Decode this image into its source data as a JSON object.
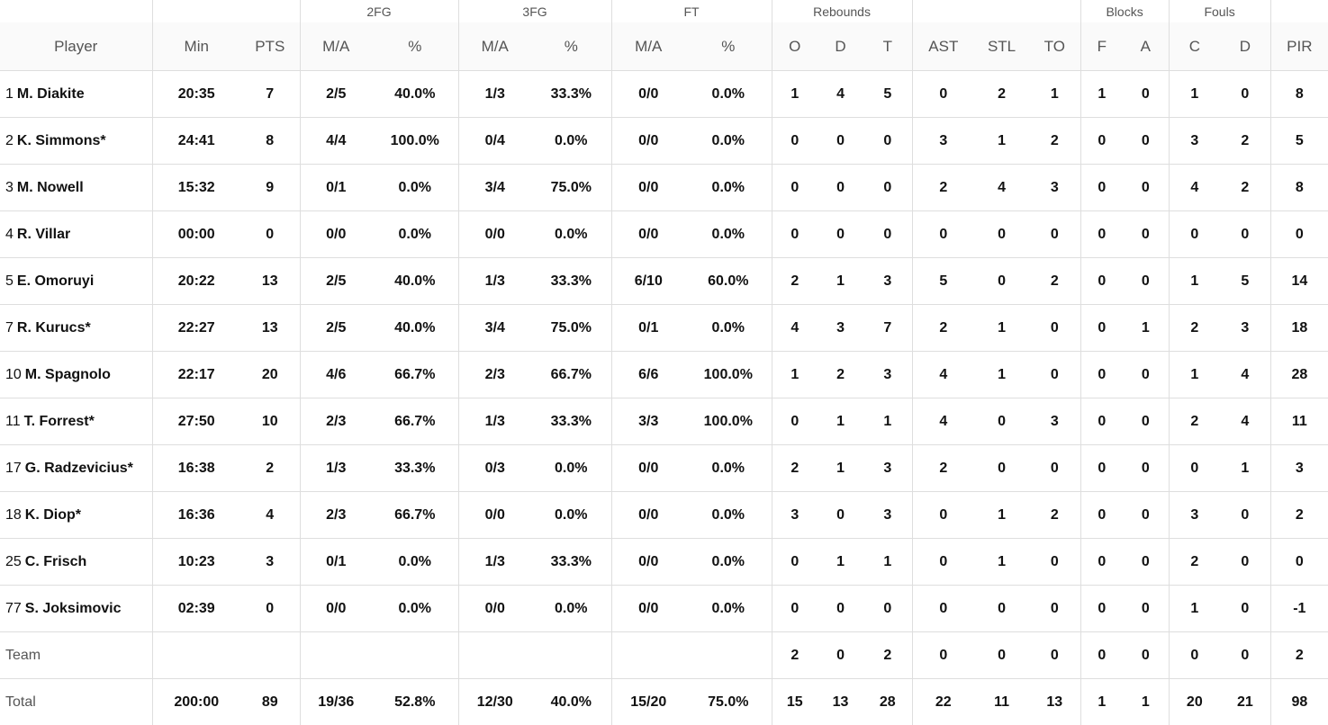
{
  "groups": {
    "fg2": "2FG",
    "fg3": "3FG",
    "ft": "FT",
    "rebounds": "Rebounds",
    "blocks": "Blocks",
    "fouls": "Fouls"
  },
  "headers": {
    "player": "Player",
    "min": "Min",
    "pts": "PTS",
    "fg2_ma": "M/A",
    "fg2_pct": "%",
    "fg3_ma": "M/A",
    "fg3_pct": "%",
    "ft_ma": "M/A",
    "ft_pct": "%",
    "reb_o": "O",
    "reb_d": "D",
    "reb_t": "T",
    "ast": "AST",
    "stl": "STL",
    "to": "TO",
    "blk_f": "F",
    "blk_a": "A",
    "foul_c": "C",
    "foul_d": "D",
    "pir": "PIR"
  },
  "players": [
    {
      "num": "1",
      "name": "M. Diakite",
      "min": "20:35",
      "pts": "7",
      "fg2_ma": "2/5",
      "fg2_pct": "40.0%",
      "fg3_ma": "1/3",
      "fg3_pct": "33.3%",
      "ft_ma": "0/0",
      "ft_pct": "0.0%",
      "reb_o": "1",
      "reb_d": "4",
      "reb_t": "5",
      "ast": "0",
      "stl": "2",
      "to": "1",
      "blk_f": "1",
      "blk_a": "0",
      "foul_c": "1",
      "foul_d": "0",
      "pir": "8"
    },
    {
      "num": "2",
      "name": "K. Simmons*",
      "min": "24:41",
      "pts": "8",
      "fg2_ma": "4/4",
      "fg2_pct": "100.0%",
      "fg3_ma": "0/4",
      "fg3_pct": "0.0%",
      "ft_ma": "0/0",
      "ft_pct": "0.0%",
      "reb_o": "0",
      "reb_d": "0",
      "reb_t": "0",
      "ast": "3",
      "stl": "1",
      "to": "2",
      "blk_f": "0",
      "blk_a": "0",
      "foul_c": "3",
      "foul_d": "2",
      "pir": "5"
    },
    {
      "num": "3",
      "name": "M. Nowell",
      "min": "15:32",
      "pts": "9",
      "fg2_ma": "0/1",
      "fg2_pct": "0.0%",
      "fg3_ma": "3/4",
      "fg3_pct": "75.0%",
      "ft_ma": "0/0",
      "ft_pct": "0.0%",
      "reb_o": "0",
      "reb_d": "0",
      "reb_t": "0",
      "ast": "2",
      "stl": "4",
      "to": "3",
      "blk_f": "0",
      "blk_a": "0",
      "foul_c": "4",
      "foul_d": "2",
      "pir": "8"
    },
    {
      "num": "4",
      "name": "R. Villar",
      "min": "00:00",
      "pts": "0",
      "fg2_ma": "0/0",
      "fg2_pct": "0.0%",
      "fg3_ma": "0/0",
      "fg3_pct": "0.0%",
      "ft_ma": "0/0",
      "ft_pct": "0.0%",
      "reb_o": "0",
      "reb_d": "0",
      "reb_t": "0",
      "ast": "0",
      "stl": "0",
      "to": "0",
      "blk_f": "0",
      "blk_a": "0",
      "foul_c": "0",
      "foul_d": "0",
      "pir": "0"
    },
    {
      "num": "5",
      "name": "E. Omoruyi",
      "min": "20:22",
      "pts": "13",
      "fg2_ma": "2/5",
      "fg2_pct": "40.0%",
      "fg3_ma": "1/3",
      "fg3_pct": "33.3%",
      "ft_ma": "6/10",
      "ft_pct": "60.0%",
      "reb_o": "2",
      "reb_d": "1",
      "reb_t": "3",
      "ast": "5",
      "stl": "0",
      "to": "2",
      "blk_f": "0",
      "blk_a": "0",
      "foul_c": "1",
      "foul_d": "5",
      "pir": "14"
    },
    {
      "num": "7",
      "name": "R. Kurucs*",
      "min": "22:27",
      "pts": "13",
      "fg2_ma": "2/5",
      "fg2_pct": "40.0%",
      "fg3_ma": "3/4",
      "fg3_pct": "75.0%",
      "ft_ma": "0/1",
      "ft_pct": "0.0%",
      "reb_o": "4",
      "reb_d": "3",
      "reb_t": "7",
      "ast": "2",
      "stl": "1",
      "to": "0",
      "blk_f": "0",
      "blk_a": "1",
      "foul_c": "2",
      "foul_d": "3",
      "pir": "18"
    },
    {
      "num": "10",
      "name": "M. Spagnolo",
      "min": "22:17",
      "pts": "20",
      "fg2_ma": "4/6",
      "fg2_pct": "66.7%",
      "fg3_ma": "2/3",
      "fg3_pct": "66.7%",
      "ft_ma": "6/6",
      "ft_pct": "100.0%",
      "reb_o": "1",
      "reb_d": "2",
      "reb_t": "3",
      "ast": "4",
      "stl": "1",
      "to": "0",
      "blk_f": "0",
      "blk_a": "0",
      "foul_c": "1",
      "foul_d": "4",
      "pir": "28"
    },
    {
      "num": "11",
      "name": "T. Forrest*",
      "min": "27:50",
      "pts": "10",
      "fg2_ma": "2/3",
      "fg2_pct": "66.7%",
      "fg3_ma": "1/3",
      "fg3_pct": "33.3%",
      "ft_ma": "3/3",
      "ft_pct": "100.0%",
      "reb_o": "0",
      "reb_d": "1",
      "reb_t": "1",
      "ast": "4",
      "stl": "0",
      "to": "3",
      "blk_f": "0",
      "blk_a": "0",
      "foul_c": "2",
      "foul_d": "4",
      "pir": "11"
    },
    {
      "num": "17",
      "name": "G. Radzevicius*",
      "min": "16:38",
      "pts": "2",
      "fg2_ma": "1/3",
      "fg2_pct": "33.3%",
      "fg3_ma": "0/3",
      "fg3_pct": "0.0%",
      "ft_ma": "0/0",
      "ft_pct": "0.0%",
      "reb_o": "2",
      "reb_d": "1",
      "reb_t": "3",
      "ast": "2",
      "stl": "0",
      "to": "0",
      "blk_f": "0",
      "blk_a": "0",
      "foul_c": "0",
      "foul_d": "1",
      "pir": "3"
    },
    {
      "num": "18",
      "name": "K. Diop*",
      "min": "16:36",
      "pts": "4",
      "fg2_ma": "2/3",
      "fg2_pct": "66.7%",
      "fg3_ma": "0/0",
      "fg3_pct": "0.0%",
      "ft_ma": "0/0",
      "ft_pct": "0.0%",
      "reb_o": "3",
      "reb_d": "0",
      "reb_t": "3",
      "ast": "0",
      "stl": "1",
      "to": "2",
      "blk_f": "0",
      "blk_a": "0",
      "foul_c": "3",
      "foul_d": "0",
      "pir": "2"
    },
    {
      "num": "25",
      "name": "C. Frisch",
      "min": "10:23",
      "pts": "3",
      "fg2_ma": "0/1",
      "fg2_pct": "0.0%",
      "fg3_ma": "1/3",
      "fg3_pct": "33.3%",
      "ft_ma": "0/0",
      "ft_pct": "0.0%",
      "reb_o": "0",
      "reb_d": "1",
      "reb_t": "1",
      "ast": "0",
      "stl": "1",
      "to": "0",
      "blk_f": "0",
      "blk_a": "0",
      "foul_c": "2",
      "foul_d": "0",
      "pir": "0"
    },
    {
      "num": "77",
      "name": "S. Joksimovic",
      "min": "02:39",
      "pts": "0",
      "fg2_ma": "0/0",
      "fg2_pct": "0.0%",
      "fg3_ma": "0/0",
      "fg3_pct": "0.0%",
      "ft_ma": "0/0",
      "ft_pct": "0.0%",
      "reb_o": "0",
      "reb_d": "0",
      "reb_t": "0",
      "ast": "0",
      "stl": "0",
      "to": "0",
      "blk_f": "0",
      "blk_a": "0",
      "foul_c": "1",
      "foul_d": "0",
      "pir": "-1"
    }
  ],
  "team": {
    "name": "Team",
    "min": "",
    "pts": "",
    "fg2_ma": "",
    "fg2_pct": "",
    "fg3_ma": "",
    "fg3_pct": "",
    "ft_ma": "",
    "ft_pct": "",
    "reb_o": "2",
    "reb_d": "0",
    "reb_t": "2",
    "ast": "0",
    "stl": "0",
    "to": "0",
    "blk_f": "0",
    "blk_a": "0",
    "foul_c": "0",
    "foul_d": "0",
    "pir": "2"
  },
  "total": {
    "name": "Total",
    "min": "200:00",
    "pts": "89",
    "fg2_ma": "19/36",
    "fg2_pct": "52.8%",
    "fg3_ma": "12/30",
    "fg3_pct": "40.0%",
    "ft_ma": "15/20",
    "ft_pct": "75.0%",
    "reb_o": "15",
    "reb_d": "13",
    "reb_t": "28",
    "ast": "22",
    "stl": "11",
    "to": "13",
    "blk_f": "1",
    "blk_a": "1",
    "foul_c": "20",
    "foul_d": "21",
    "pir": "98"
  }
}
